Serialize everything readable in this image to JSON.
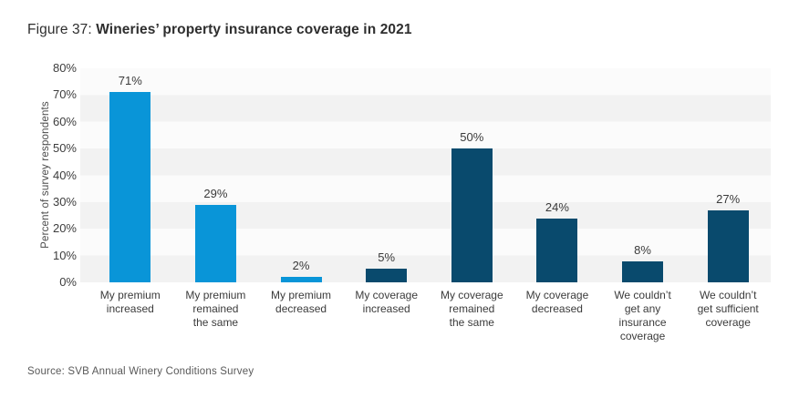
{
  "title": {
    "prefix": "Figure 37: ",
    "main": "Wineries’ property insurance coverage in 2021"
  },
  "source": "Source: SVB Annual Winery Conditions Survey",
  "chart_data": {
    "type": "bar",
    "title": "Figure 37: Wineries’ property insurance coverage in 2021",
    "categories": [
      "My premium increased",
      "My premium remained the same",
      "My premium decreased",
      "My coverage increased",
      "My coverage remained the same",
      "My coverage decreased",
      "We couldn’t get any insurance coverage",
      "We couldn’t get sufficient coverage"
    ],
    "category_lines": [
      "My premium\nincreased",
      "My premium\nremained\nthe same",
      "My premium\ndecreased",
      "My coverage\nincreased",
      "My coverage\nremained\nthe same",
      "My coverage\ndecreased",
      "We couldn’t\nget any\ninsurance\ncoverage",
      "We couldn’t\nget sufficient\ncoverage"
    ],
    "values": [
      71,
      29,
      2,
      5,
      50,
      24,
      8,
      27
    ],
    "value_labels": [
      "71%",
      "29%",
      "2%",
      "5%",
      "50%",
      "24%",
      "8%",
      "27%"
    ],
    "bar_colors": [
      "#0995d8",
      "#0995d8",
      "#0995d8",
      "#094a6d",
      "#094a6d",
      "#094a6d",
      "#094a6d",
      "#094a6d"
    ],
    "xlabel": "",
    "ylabel": "Percent of survey respondents",
    "ylim": [
      0,
      80
    ],
    "yticks": [
      "0%",
      "10%",
      "20%",
      "30%",
      "40%",
      "50%",
      "60%",
      "70%",
      "80%"
    ],
    "grid": "alternating horizontal bands every 10%",
    "band_colors": [
      "#f2f2f2",
      "#fbfbfb"
    ],
    "legend": "none",
    "colors": {
      "premium_series": "#0995d8",
      "coverage_series": "#094a6d"
    }
  }
}
